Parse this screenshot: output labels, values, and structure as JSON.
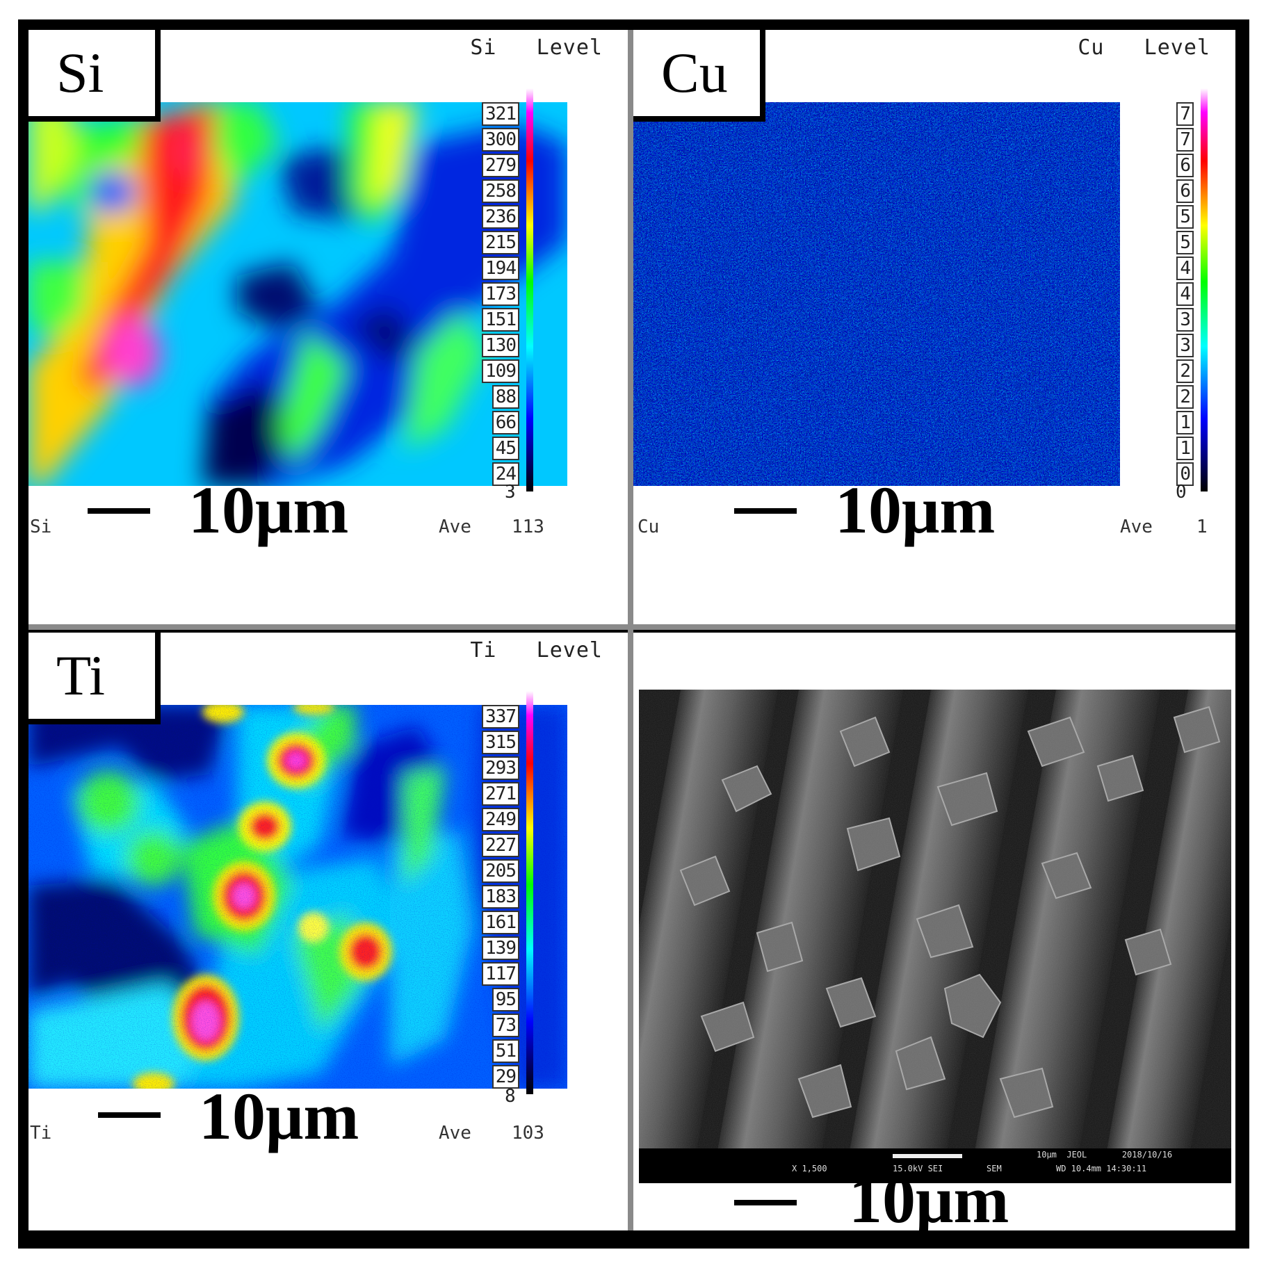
{
  "panels": {
    "si": {
      "element_label": "Si",
      "level_header": "Si   Level",
      "corner_label": "Si",
      "ave_label": "Ave",
      "ave_value": "113",
      "scale_text": "10μm",
      "ticks": [
        "321",
        "300",
        "279",
        "258",
        "236",
        "215",
        "194",
        "173",
        "151",
        "130",
        "109",
        "88",
        "66",
        "45",
        "24"
      ],
      "tick_min": "3"
    },
    "cu": {
      "element_label": "Cu",
      "level_header": "Cu   Level",
      "corner_label": "Cu",
      "ave_label": "Ave",
      "ave_value": "1",
      "scale_text": "10μm",
      "ticks": [
        "7",
        "7",
        "6",
        "6",
        "5",
        "5",
        "4",
        "4",
        "3",
        "3",
        "2",
        "2",
        "1",
        "1",
        "0"
      ],
      "tick_min": "0"
    },
    "ti": {
      "element_label": "Ti",
      "level_header": "Ti   Level",
      "corner_label": "Ti",
      "ave_label": "Ave",
      "ave_value": "103",
      "scale_text": "10μm",
      "ticks": [
        "337",
        "315",
        "293",
        "271",
        "249",
        "227",
        "205",
        "183",
        "161",
        "139",
        "117",
        "95",
        "73",
        "51",
        "29"
      ],
      "tick_min": "8"
    },
    "sem": {
      "scale_text": "10μm",
      "info_line1": "10μm  JEOL       2018/10/16",
      "info_line2_left": "X 1,500",
      "info_line2_mid": "15.0kV SEI",
      "info_line2_sem": "SEM",
      "info_line2_right": "WD 10.4mm 14:30:11"
    }
  },
  "colors": {
    "map_low": "#000060",
    "map_mid_blue": "#0030ff",
    "map_cyan": "#00c8ff",
    "map_green": "#20ff20",
    "map_yellow": "#ffee00",
    "map_red": "#ff1010",
    "map_high": "#ff40ff",
    "frame": "#000000",
    "divider": "#8a8a8a"
  }
}
